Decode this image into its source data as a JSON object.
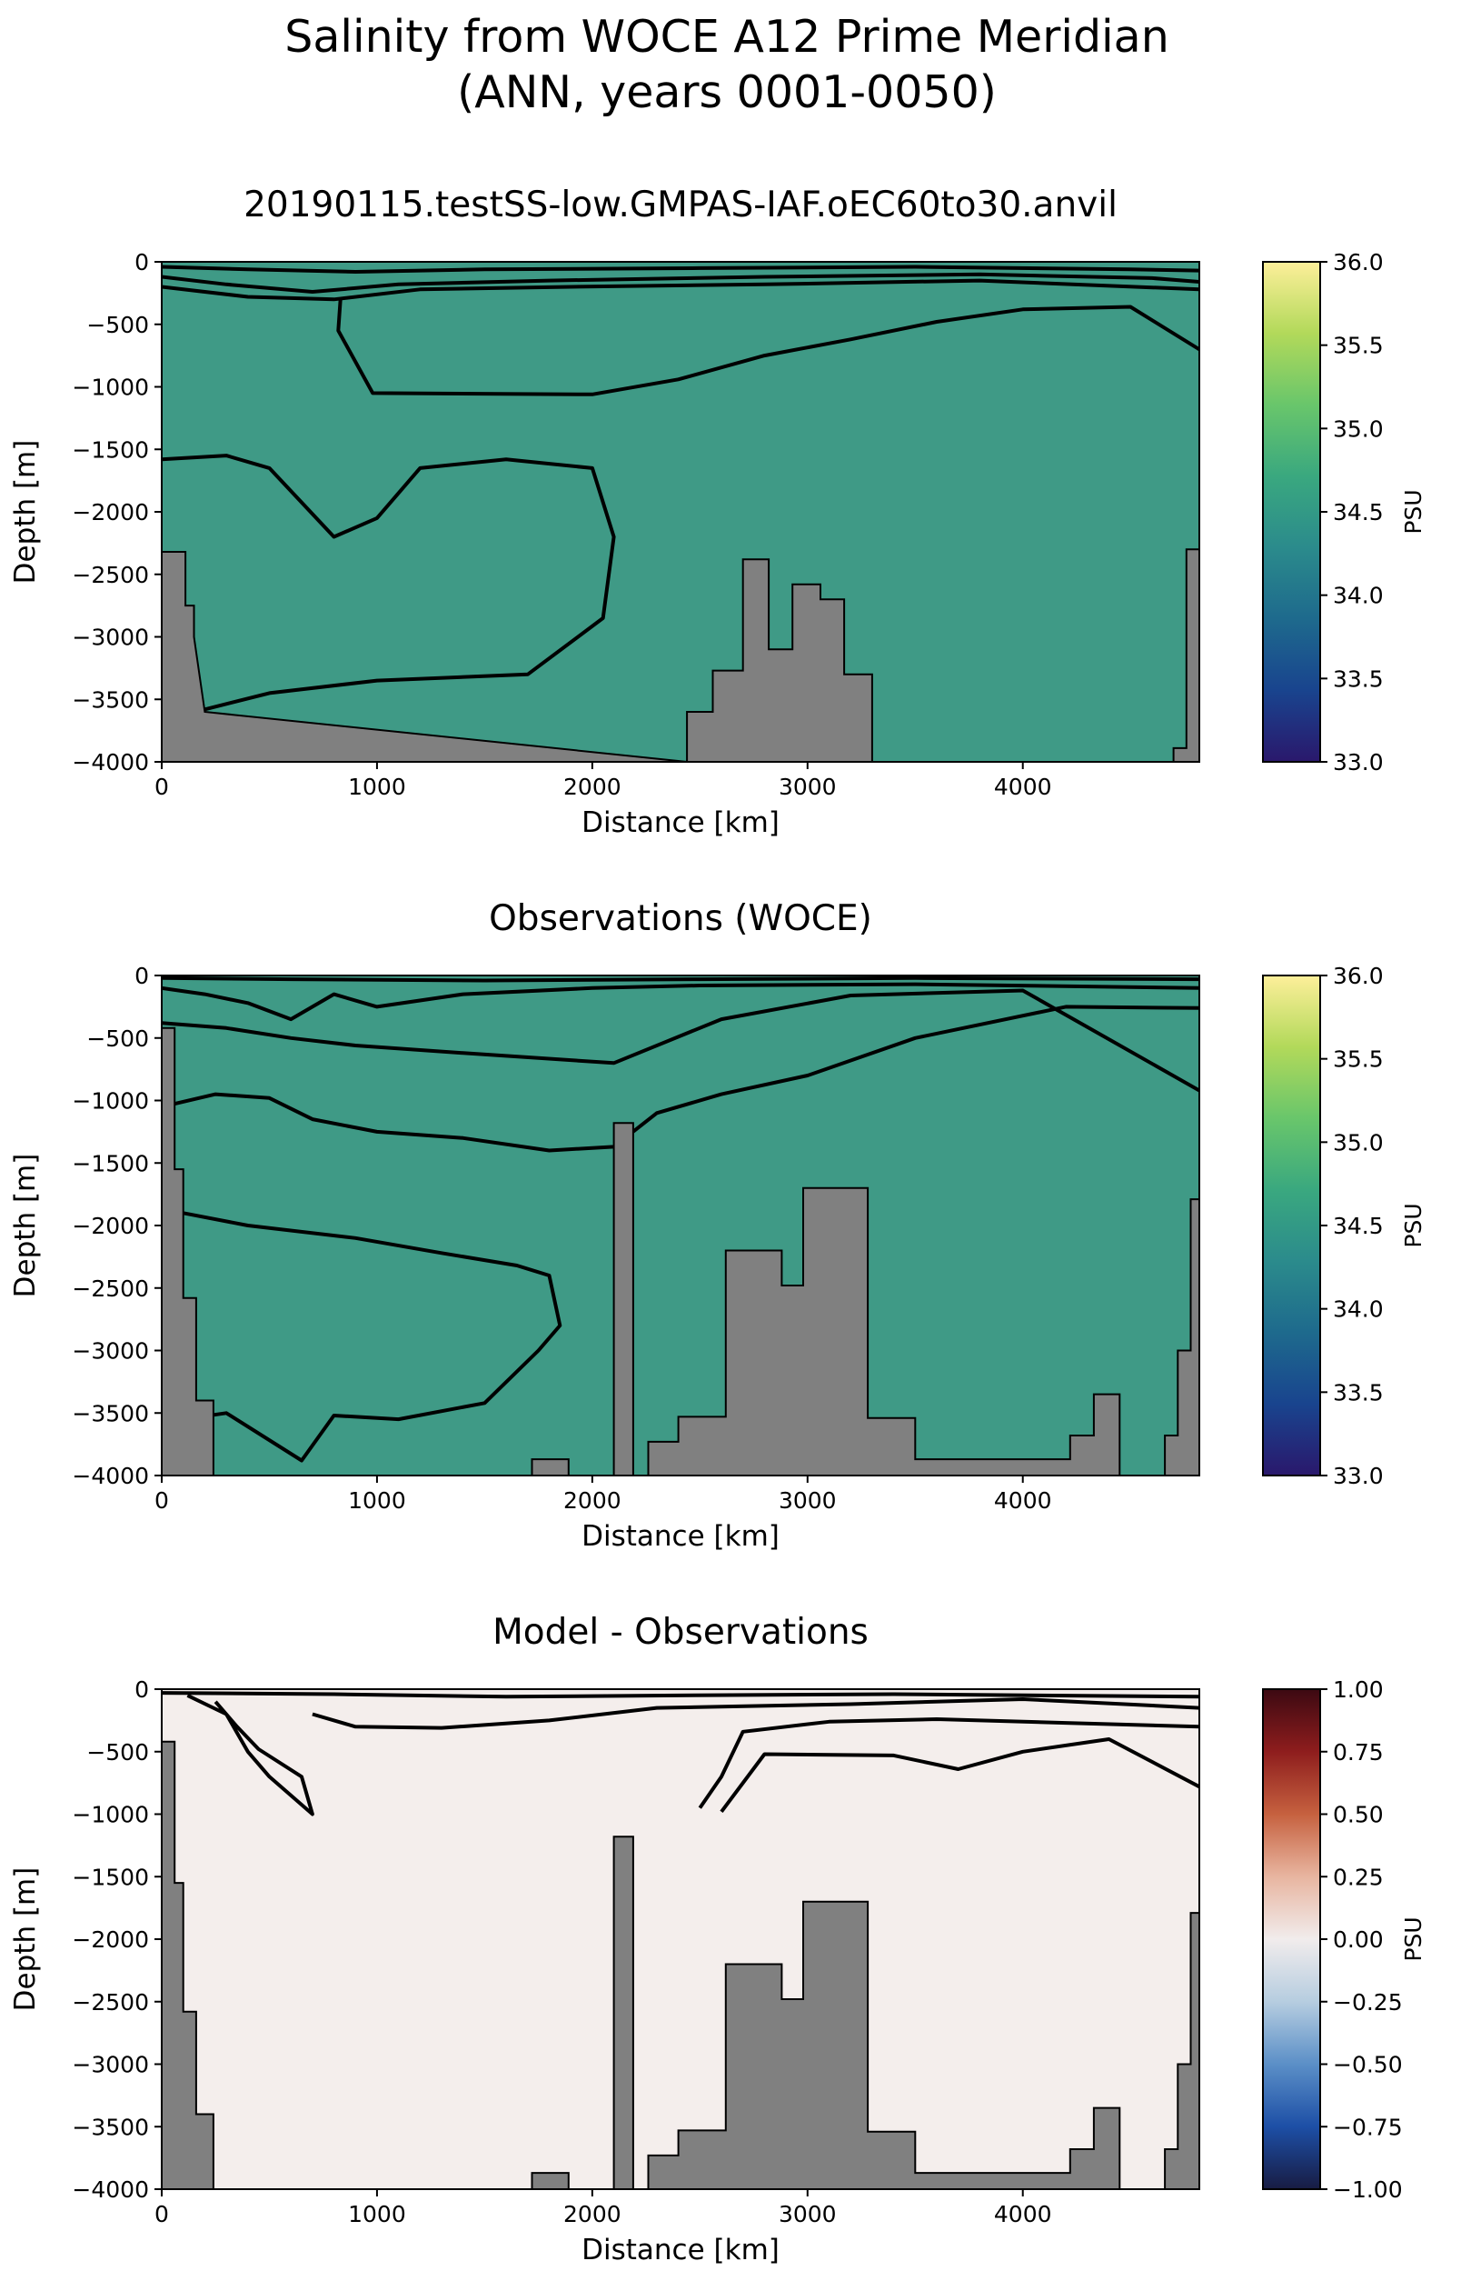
{
  "figure": {
    "title_line1": "Salinity from WOCE A12 Prime Meridian",
    "title_line2": "(ANN, years 0001-0050)"
  },
  "chart_data": [
    {
      "type": "heatmap",
      "title": "20190115.testSS-low.GMPAS-IAF.oEC60to30.anvil",
      "xlabel": "Distance [km]",
      "ylabel": "Depth [m]",
      "xlim": [
        0,
        4820
      ],
      "ylim": [
        -4000,
        0
      ],
      "xticks": [
        0,
        1000,
        2000,
        3000,
        4000
      ],
      "yticks": [
        0,
        -500,
        -1000,
        -1500,
        -2000,
        -2500,
        -3000,
        -3500,
        -4000
      ],
      "colorbar": {
        "label": "PSU",
        "range": [
          33.0,
          36.0
        ],
        "ticks": [
          "36.0",
          "35.5",
          "35.0",
          "34.5",
          "34.0",
          "33.5",
          "33.0"
        ],
        "colormap": "haline",
        "colors": [
          "#2a186c",
          "#19448e",
          "#1e6a8d",
          "#2b8b8c",
          "#3aa87f",
          "#69c66b",
          "#b2d95a",
          "#fdef9a"
        ]
      },
      "background_color": "#3f9a86",
      "topography_color": "#808080",
      "topography": [
        [
          0,
          -2320
        ],
        [
          110,
          -2320
        ],
        [
          110,
          -2750
        ],
        [
          150,
          -2750
        ],
        [
          150,
          -3000
        ],
        [
          200,
          -3600
        ],
        [
          2440,
          -4000
        ],
        [
          2440,
          -3600
        ],
        [
          2560,
          -3600
        ],
        [
          2560,
          -3270
        ],
        [
          2700,
          -3270
        ],
        [
          2700,
          -2380
        ],
        [
          2820,
          -2380
        ],
        [
          2820,
          -3100
        ],
        [
          2930,
          -3100
        ],
        [
          2930,
          -2580
        ],
        [
          3060,
          -2580
        ],
        [
          3060,
          -2700
        ],
        [
          3170,
          -2700
        ],
        [
          3170,
          -3300
        ],
        [
          3300,
          -3300
        ],
        [
          3300,
          -4000
        ],
        [
          4700,
          -4000
        ],
        [
          4700,
          -3890
        ],
        [
          4760,
          -3890
        ],
        [
          4760,
          -2300
        ],
        [
          4820,
          -2300
        ]
      ],
      "contours": [
        [
          [
            0,
            -40
          ],
          [
            400,
            -60
          ],
          [
            900,
            -80
          ],
          [
            1500,
            -60
          ],
          [
            2500,
            -50
          ],
          [
            3500,
            -40
          ],
          [
            4500,
            -60
          ],
          [
            4820,
            -70
          ]
        ],
        [
          [
            0,
            -120
          ],
          [
            300,
            -180
          ],
          [
            700,
            -240
          ],
          [
            1100,
            -180
          ],
          [
            1800,
            -150
          ],
          [
            2800,
            -120
          ],
          [
            3800,
            -100
          ],
          [
            4600,
            -130
          ],
          [
            4820,
            -160
          ]
        ],
        [
          [
            0,
            -200
          ],
          [
            400,
            -280
          ],
          [
            800,
            -300
          ],
          [
            1200,
            -220
          ],
          [
            1900,
            -200
          ],
          [
            2800,
            -180
          ],
          [
            3800,
            -150
          ],
          [
            4820,
            -220
          ]
        ],
        [
          [
            830,
            -300
          ],
          [
            820,
            -550
          ],
          [
            980,
            -1050
          ],
          [
            2000,
            -1060
          ],
          [
            2400,
            -940
          ],
          [
            2800,
            -750
          ],
          [
            3200,
            -620
          ],
          [
            3600,
            -480
          ],
          [
            4000,
            -380
          ],
          [
            4500,
            -360
          ],
          [
            4820,
            -700
          ]
        ],
        [
          [
            0,
            -1580
          ],
          [
            300,
            -1550
          ],
          [
            500,
            -1650
          ],
          [
            800,
            -2200
          ],
          [
            1000,
            -2050
          ],
          [
            1200,
            -1650
          ],
          [
            1600,
            -1580
          ],
          [
            2000,
            -1650
          ],
          [
            2100,
            -2200
          ],
          [
            2050,
            -2850
          ],
          [
            1700,
            -3300
          ],
          [
            1000,
            -3350
          ],
          [
            500,
            -3450
          ],
          [
            200,
            -3580
          ]
        ]
      ]
    },
    {
      "type": "heatmap",
      "title": "Observations (WOCE)",
      "xlabel": "Distance [km]",
      "ylabel": "Depth [m]",
      "xlim": [
        0,
        4820
      ],
      "ylim": [
        -4000,
        0
      ],
      "xticks": [
        0,
        1000,
        2000,
        3000,
        4000
      ],
      "yticks": [
        0,
        -500,
        -1000,
        -1500,
        -2000,
        -2500,
        -3000,
        -3500,
        -4000
      ],
      "colorbar": {
        "label": "PSU",
        "range": [
          33.0,
          36.0
        ],
        "ticks": [
          "36.0",
          "35.5",
          "35.0",
          "34.5",
          "34.0",
          "33.5",
          "33.0"
        ],
        "colormap": "haline",
        "colors": [
          "#2a186c",
          "#19448e",
          "#1e6a8d",
          "#2b8b8c",
          "#3aa87f",
          "#69c66b",
          "#b2d95a",
          "#fdef9a"
        ]
      },
      "background_color": "#3f9a86",
      "topography_color": "#808080",
      "topography": [
        [
          0,
          -420
        ],
        [
          60,
          -420
        ],
        [
          60,
          -1550
        ],
        [
          100,
          -1550
        ],
        [
          100,
          -2580
        ],
        [
          160,
          -2580
        ],
        [
          160,
          -3400
        ],
        [
          240,
          -3400
        ],
        [
          240,
          -4000
        ],
        [
          1720,
          -4000
        ],
        [
          1720,
          -3870
        ],
        [
          1890,
          -3870
        ],
        [
          1890,
          -4000
        ],
        [
          2100,
          -4000
        ],
        [
          2100,
          -1180
        ],
        [
          2190,
          -1180
        ],
        [
          2190,
          -4000
        ],
        [
          2260,
          -4000
        ],
        [
          2260,
          -3730
        ],
        [
          2400,
          -3730
        ],
        [
          2400,
          -3530
        ],
        [
          2620,
          -3530
        ],
        [
          2620,
          -2200
        ],
        [
          2880,
          -2200
        ],
        [
          2880,
          -2480
        ],
        [
          2980,
          -2480
        ],
        [
          2980,
          -1700
        ],
        [
          3280,
          -1700
        ],
        [
          3280,
          -3540
        ],
        [
          3500,
          -3540
        ],
        [
          3500,
          -3870
        ],
        [
          4220,
          -3870
        ],
        [
          4220,
          -3680
        ],
        [
          4330,
          -3680
        ],
        [
          4330,
          -3350
        ],
        [
          4450,
          -3350
        ],
        [
          4450,
          -4000
        ],
        [
          4660,
          -4000
        ],
        [
          4660,
          -3680
        ],
        [
          4720,
          -3680
        ],
        [
          4720,
          -3000
        ],
        [
          4780,
          -3000
        ],
        [
          4780,
          -1790
        ],
        [
          4820,
          -1790
        ]
      ],
      "contours": [
        [
          [
            0,
            -20
          ],
          [
            600,
            -30
          ],
          [
            1500,
            -40
          ],
          [
            2500,
            -30
          ],
          [
            3500,
            -20
          ],
          [
            4820,
            -30
          ]
        ],
        [
          [
            0,
            -100
          ],
          [
            200,
            -150
          ],
          [
            400,
            -220
          ],
          [
            600,
            -350
          ],
          [
            800,
            -150
          ],
          [
            1000,
            -250
          ],
          [
            1400,
            -150
          ],
          [
            2000,
            -100
          ],
          [
            2500,
            -80
          ],
          [
            3500,
            -70
          ],
          [
            4820,
            -100
          ]
        ],
        [
          [
            0,
            -380
          ],
          [
            300,
            -420
          ],
          [
            600,
            -500
          ],
          [
            900,
            -560
          ],
          [
            1400,
            -620
          ],
          [
            2100,
            -700
          ],
          [
            2600,
            -350
          ],
          [
            3200,
            -160
          ],
          [
            4000,
            -120
          ],
          [
            4820,
            -920
          ]
        ],
        [
          [
            0,
            -1050
          ],
          [
            250,
            -950
          ],
          [
            500,
            -980
          ],
          [
            700,
            -1150
          ],
          [
            1000,
            -1250
          ],
          [
            1400,
            -1300
          ],
          [
            1800,
            -1400
          ],
          [
            2100,
            -1370
          ],
          [
            2300,
            -1100
          ],
          [
            2600,
            -950
          ],
          [
            3000,
            -800
          ],
          [
            3500,
            -500
          ],
          [
            4200,
            -250
          ],
          [
            4820,
            -260
          ]
        ],
        [
          [
            100,
            -1900
          ],
          [
            400,
            -2000
          ],
          [
            900,
            -2100
          ],
          [
            1300,
            -2220
          ],
          [
            1650,
            -2320
          ],
          [
            1800,
            -2400
          ],
          [
            1850,
            -2800
          ],
          [
            1750,
            -3000
          ],
          [
            1500,
            -3420
          ],
          [
            1100,
            -3550
          ],
          [
            800,
            -3520
          ],
          [
            650,
            -3880
          ],
          [
            300,
            -3500
          ],
          [
            100,
            -3550
          ]
        ]
      ]
    },
    {
      "type": "heatmap",
      "title": "Model - Observations",
      "xlabel": "Distance [km]",
      "ylabel": "Depth [m]",
      "xlim": [
        0,
        4820
      ],
      "ylim": [
        -4000,
        0
      ],
      "xticks": [
        0,
        1000,
        2000,
        3000,
        4000
      ],
      "yticks": [
        0,
        -500,
        -1000,
        -1500,
        -2000,
        -2500,
        -3000,
        -3500,
        -4000
      ],
      "colorbar": {
        "label": "PSU",
        "range": [
          -1.0,
          1.0
        ],
        "ticks": [
          "1.00",
          "0.75",
          "0.50",
          "0.25",
          "0.00",
          "−0.25",
          "−0.50",
          "−0.75",
          "−1.00"
        ],
        "colormap": "balance",
        "colors": [
          "#181c43",
          "#1d4fa6",
          "#5b8fc7",
          "#b6cde0",
          "#f1ecec",
          "#e8b5a0",
          "#c6613f",
          "#8e1d1d",
          "#3c0912"
        ]
      },
      "background_color": "#f4eeec",
      "topography_color": "#808080",
      "topography": [
        [
          0,
          -420
        ],
        [
          60,
          -420
        ],
        [
          60,
          -1550
        ],
        [
          100,
          -1550
        ],
        [
          100,
          -2580
        ],
        [
          160,
          -2580
        ],
        [
          160,
          -3400
        ],
        [
          240,
          -3400
        ],
        [
          240,
          -4000
        ],
        [
          1720,
          -4000
        ],
        [
          1720,
          -3870
        ],
        [
          1890,
          -3870
        ],
        [
          1890,
          -4000
        ],
        [
          2100,
          -4000
        ],
        [
          2100,
          -1180
        ],
        [
          2190,
          -1180
        ],
        [
          2190,
          -4000
        ],
        [
          2260,
          -4000
        ],
        [
          2260,
          -3730
        ],
        [
          2400,
          -3730
        ],
        [
          2400,
          -3530
        ],
        [
          2620,
          -3530
        ],
        [
          2620,
          -2200
        ],
        [
          2880,
          -2200
        ],
        [
          2880,
          -2480
        ],
        [
          2980,
          -2480
        ],
        [
          2980,
          -1700
        ],
        [
          3280,
          -1700
        ],
        [
          3280,
          -3540
        ],
        [
          3500,
          -3540
        ],
        [
          3500,
          -3870
        ],
        [
          4220,
          -3870
        ],
        [
          4220,
          -3680
        ],
        [
          4330,
          -3680
        ],
        [
          4330,
          -3350
        ],
        [
          4450,
          -3350
        ],
        [
          4450,
          -4000
        ],
        [
          4660,
          -4000
        ],
        [
          4660,
          -3680
        ],
        [
          4720,
          -3680
        ],
        [
          4720,
          -3000
        ],
        [
          4780,
          -3000
        ],
        [
          4780,
          -1790
        ],
        [
          4820,
          -1790
        ]
      ],
      "contours": [
        [
          [
            0,
            -30
          ],
          [
            800,
            -40
          ],
          [
            1600,
            -60
          ],
          [
            2400,
            -50
          ],
          [
            3400,
            -40
          ],
          [
            4820,
            -60
          ]
        ],
        [
          [
            700,
            -200
          ],
          [
            900,
            -300
          ],
          [
            1300,
            -310
          ],
          [
            1800,
            -250
          ],
          [
            2300,
            -150
          ],
          [
            3200,
            -120
          ],
          [
            4000,
            -80
          ],
          [
            4820,
            -150
          ]
        ],
        [
          [
            120,
            -50
          ],
          [
            300,
            -200
          ],
          [
            400,
            -500
          ],
          [
            500,
            -700
          ],
          [
            700,
            -1000
          ],
          [
            650,
            -700
          ],
          [
            450,
            -480
          ],
          [
            350,
            -300
          ],
          [
            250,
            -100
          ]
        ],
        [
          [
            2500,
            -950
          ],
          [
            2600,
            -700
          ],
          [
            2700,
            -340
          ],
          [
            3100,
            -260
          ],
          [
            3600,
            -240
          ],
          [
            4200,
            -270
          ],
          [
            4820,
            -300
          ]
        ],
        [
          [
            2600,
            -980
          ],
          [
            2800,
            -520
          ],
          [
            3400,
            -530
          ],
          [
            3700,
            -640
          ],
          [
            4000,
            -500
          ],
          [
            4400,
            -400
          ],
          [
            4820,
            -780
          ]
        ]
      ]
    }
  ]
}
